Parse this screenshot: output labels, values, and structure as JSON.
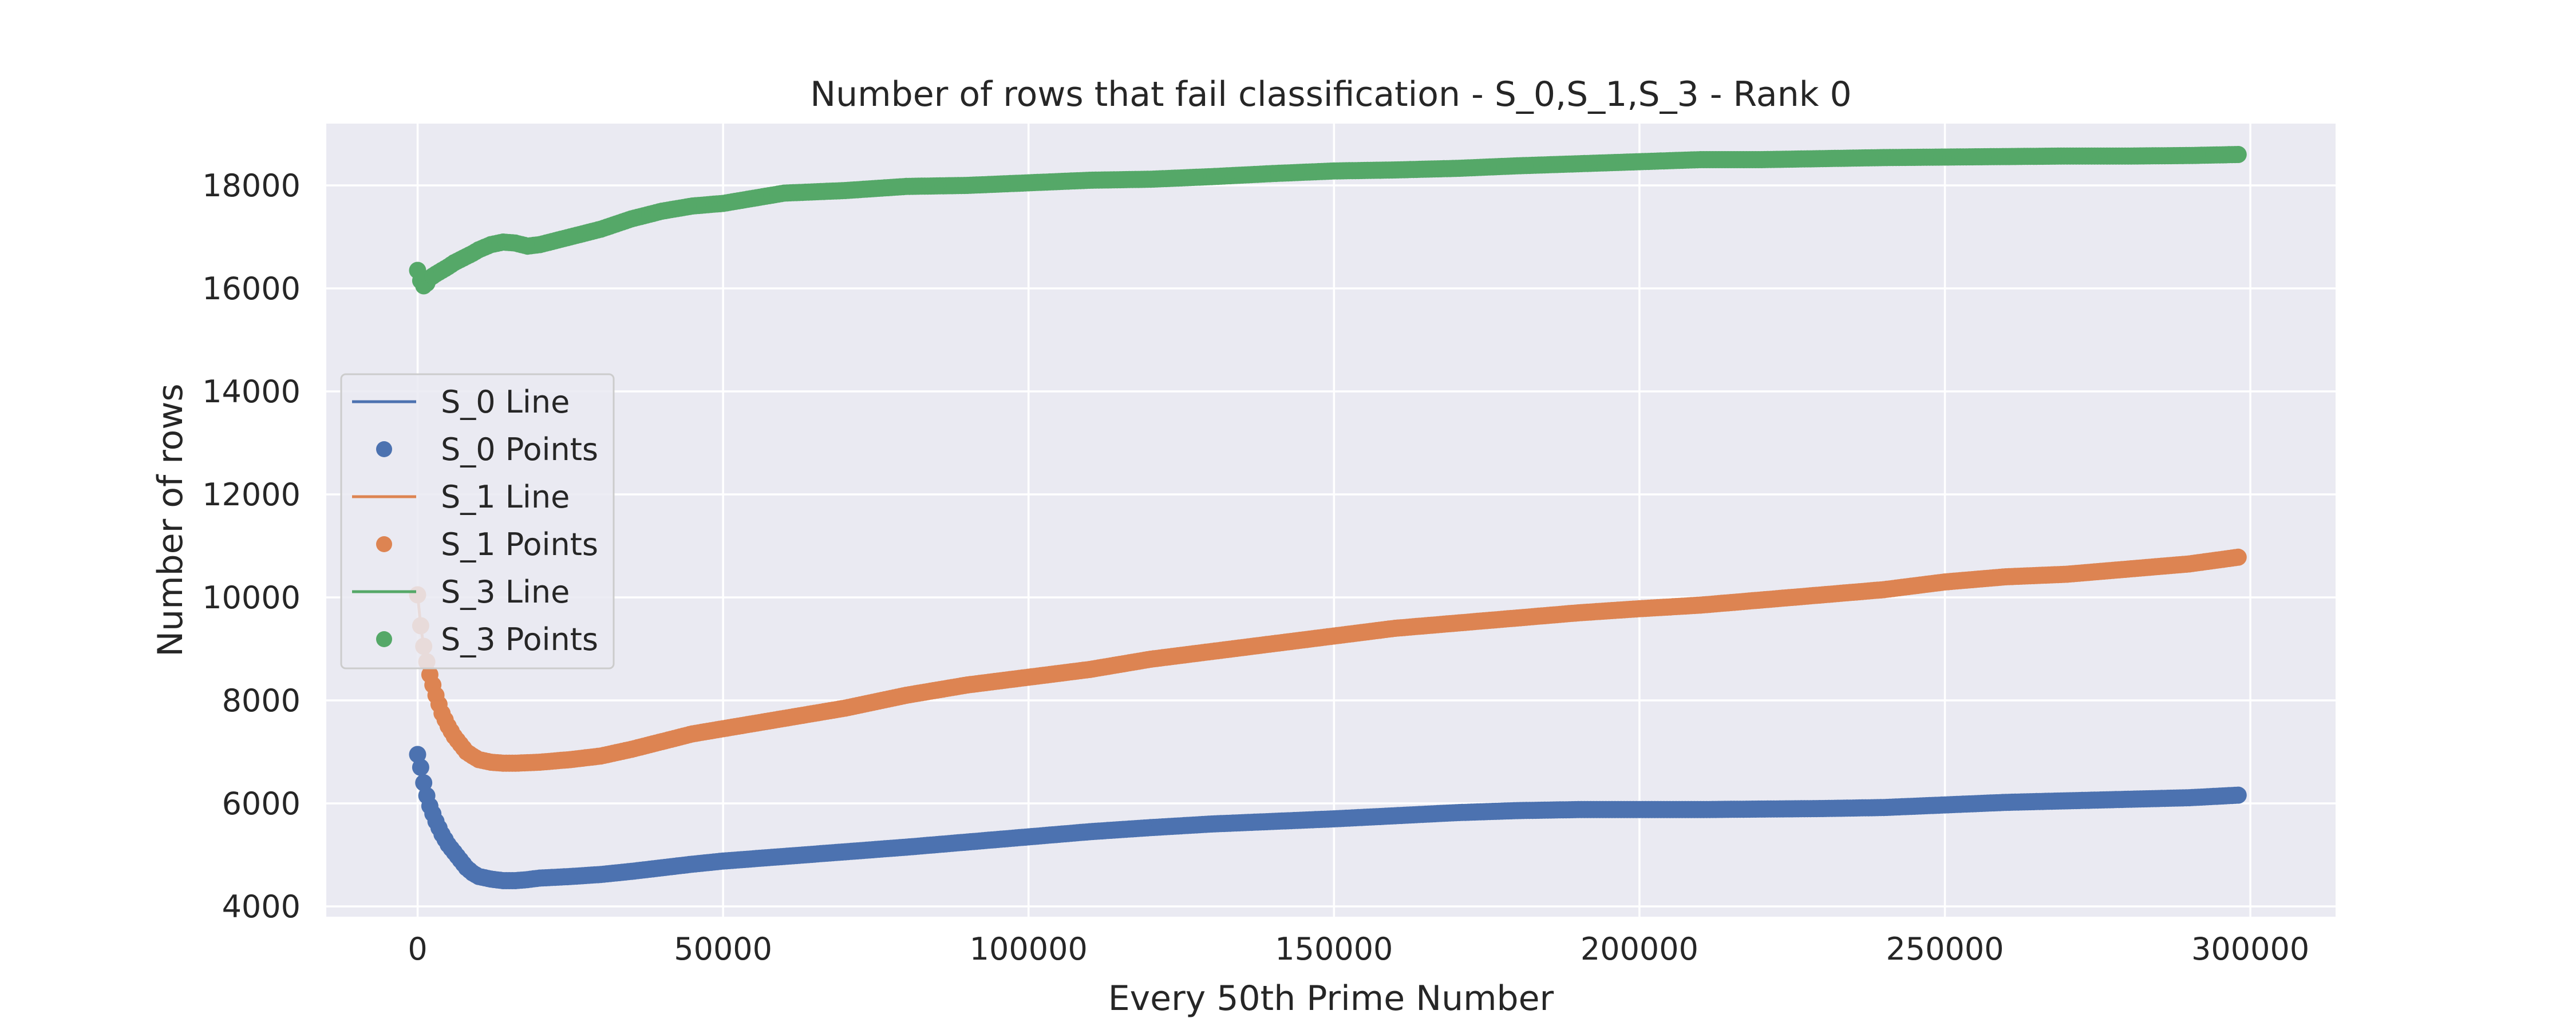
{
  "chart_data": {
    "type": "scatter",
    "title": "Number of rows that fail classification - S_0,S_1,S_3 - Rank 0",
    "xlabel": "Every 50th Prime Number",
    "ylabel": "Number of rows",
    "xlim": [
      -14950,
      313950
    ],
    "ylim": [
      3800,
      19200
    ],
    "xticks": [
      0,
      50000,
      100000,
      150000,
      200000,
      250000,
      300000
    ],
    "xtick_labels": [
      "0",
      "50000",
      "100000",
      "150000",
      "200000",
      "250000",
      "300000"
    ],
    "yticks": [
      4000,
      6000,
      8000,
      10000,
      12000,
      14000,
      16000,
      18000
    ],
    "ytick_labels": [
      "4000",
      "6000",
      "8000",
      "10000",
      "12000",
      "14000",
      "16000",
      "18000"
    ],
    "grid": true,
    "legend_position": "center-left",
    "legend": [
      "S_0 Line",
      "S_0 Points",
      "S_1 Line",
      "S_1 Points",
      "S_3 Line",
      "S_3 Points"
    ],
    "colors": {
      "S_0": "#4c72b0",
      "S_1": "#dd8452",
      "S_3": "#55a868",
      "axes_background": "#eaeaf2",
      "grid": "#ffffff"
    },
    "series": [
      {
        "name": "S_0",
        "line_label": "S_0 Line",
        "points_label": "S_0 Points",
        "x": [
          0,
          500,
          1000,
          1500,
          2000,
          3000,
          4000,
          5000,
          6000,
          7000,
          8000,
          9000,
          10000,
          12000,
          14000,
          16000,
          18000,
          20000,
          25000,
          30000,
          35000,
          40000,
          45000,
          50000,
          60000,
          70000,
          80000,
          90000,
          100000,
          110000,
          120000,
          130000,
          140000,
          150000,
          160000,
          170000,
          180000,
          190000,
          200000,
          210000,
          220000,
          230000,
          240000,
          250000,
          260000,
          270000,
          280000,
          290000,
          298000
        ],
        "y": [
          6950,
          6700,
          6400,
          6150,
          5950,
          5650,
          5400,
          5200,
          5050,
          4900,
          4750,
          4650,
          4580,
          4530,
          4500,
          4500,
          4520,
          4550,
          4580,
          4620,
          4680,
          4750,
          4820,
          4880,
          4970,
          5060,
          5150,
          5250,
          5350,
          5450,
          5530,
          5600,
          5650,
          5700,
          5760,
          5820,
          5860,
          5880,
          5880,
          5880,
          5890,
          5900,
          5920,
          5970,
          6020,
          6050,
          6080,
          6110,
          6160
        ]
      },
      {
        "name": "S_1",
        "line_label": "S_1 Line",
        "points_label": "S_1 Points",
        "x": [
          0,
          500,
          1000,
          1500,
          2000,
          3000,
          4000,
          5000,
          6000,
          7000,
          8000,
          9000,
          10000,
          12000,
          14000,
          16000,
          18000,
          20000,
          25000,
          30000,
          35000,
          40000,
          45000,
          50000,
          60000,
          70000,
          80000,
          90000,
          100000,
          110000,
          120000,
          130000,
          140000,
          150000,
          160000,
          170000,
          180000,
          190000,
          200000,
          210000,
          220000,
          230000,
          240000,
          250000,
          260000,
          270000,
          280000,
          290000,
          298000
        ],
        "y": [
          10050,
          9450,
          9050,
          8750,
          8500,
          8100,
          7750,
          7500,
          7300,
          7150,
          7000,
          6920,
          6850,
          6800,
          6780,
          6780,
          6790,
          6800,
          6850,
          6920,
          7050,
          7200,
          7350,
          7450,
          7650,
          7850,
          8100,
          8300,
          8450,
          8600,
          8800,
          8950,
          9100,
          9250,
          9400,
          9500,
          9600,
          9700,
          9780,
          9850,
          9950,
          10050,
          10150,
          10300,
          10400,
          10450,
          10550,
          10650,
          10780
        ]
      },
      {
        "name": "S_3",
        "line_label": "S_3 Line",
        "points_label": "S_3 Points",
        "x": [
          0,
          500,
          1000,
          1500,
          2000,
          3000,
          4000,
          5000,
          6000,
          7000,
          8000,
          9000,
          10000,
          12000,
          14000,
          16000,
          18000,
          20000,
          25000,
          30000,
          35000,
          40000,
          45000,
          50000,
          60000,
          70000,
          80000,
          90000,
          100000,
          110000,
          120000,
          130000,
          140000,
          150000,
          160000,
          170000,
          180000,
          190000,
          200000,
          210000,
          220000,
          230000,
          240000,
          250000,
          260000,
          270000,
          280000,
          290000,
          298000
        ],
        "y": [
          16350,
          16150,
          16050,
          16100,
          16200,
          16280,
          16350,
          16420,
          16500,
          16560,
          16620,
          16680,
          16750,
          16850,
          16900,
          16880,
          16820,
          16850,
          17000,
          17150,
          17350,
          17500,
          17600,
          17650,
          17850,
          17900,
          17980,
          18000,
          18050,
          18100,
          18120,
          18170,
          18230,
          18280,
          18300,
          18330,
          18380,
          18420,
          18460,
          18500,
          18500,
          18520,
          18540,
          18550,
          18560,
          18570,
          18570,
          18580,
          18600
        ]
      }
    ]
  }
}
